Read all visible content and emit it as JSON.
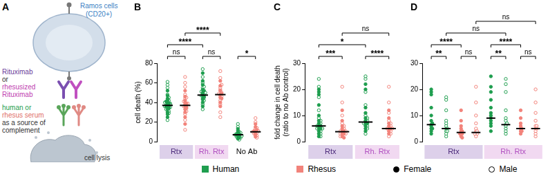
{
  "panel_a": {
    "label": "A",
    "cell": [
      "Ramos cells",
      "(CD20+)"
    ],
    "antibody_text": [
      "Rituximab",
      "or",
      "rhesusized",
      "Rituximab"
    ],
    "serum_text": [
      "human or",
      "rhesus serum",
      "as a source of",
      "complement"
    ],
    "lysis": "cell lysis"
  },
  "legend": {
    "series": [
      {
        "name": "Human",
        "color": "#1f9e4f"
      },
      {
        "name": "Rhesus",
        "color": "#f2837b"
      }
    ],
    "markers": [
      {
        "name": "Female",
        "marker": "filled"
      },
      {
        "name": "Male",
        "marker": "open"
      }
    ]
  },
  "chart_data": [
    {
      "panel": "B",
      "type": "scatter",
      "y_label": "cell death (%)",
      "ylim": [
        0,
        80
      ],
      "yticks": [
        0,
        20,
        40,
        60,
        80
      ],
      "grid": false,
      "tick_labels": "y",
      "groups": [
        {
          "label": "Rtx",
          "color": "#ddd0ea",
          "columns": [
            {
              "series": "Human",
              "median": 37,
              "female": [
                36,
                38,
                40,
                33,
                35,
                42,
                37,
                30,
                44,
                39,
                28,
                47,
                36,
                34,
                41,
                52,
                25
              ],
              "male": [
                37,
                31,
                45,
                39,
                35,
                42,
                29,
                48,
                36,
                33,
                58,
                22,
                40,
                38,
                55,
                61
              ]
            },
            {
              "series": "Rhesus",
              "median": 37,
              "female": [
                36,
                30,
                42,
                38,
                25,
                46,
                33,
                40,
                18,
                52,
                35,
                39
              ],
              "male": [
                37,
                28,
                44,
                41,
                34,
                48,
                22,
                56,
                31,
                12,
                39,
                60,
                36,
                45,
                66
              ]
            }
          ]
        },
        {
          "label": "Rh. Rtx",
          "color": "#f1d9f1",
          "columns": [
            {
              "series": "Human",
              "median": 47.5,
              "female": [
                47,
                50,
                44,
                53,
                40,
                58,
                46,
                36,
                62,
                49,
                52,
                70,
                43
              ],
              "male": [
                48,
                45,
                55,
                51,
                38,
                60,
                42,
                66,
                47,
                33,
                74,
                56,
                50
              ]
            },
            {
              "series": "Rhesus",
              "median": 48,
              "female": [
                48,
                45,
                52,
                40,
                57,
                49,
                36,
                62,
                44
              ],
              "male": [
                47,
                53,
                42,
                58,
                50,
                30,
                65,
                46,
                38,
                72,
                55,
                25,
                49
              ]
            }
          ]
        },
        {
          "label": "No Ab",
          "columns": [
            {
              "series": "Human",
              "median": 7,
              "female": [
                7,
                5,
                9,
                6,
                8,
                4,
                11,
                7,
                3,
                13
              ],
              "male": [
                8,
                6,
                10,
                5,
                7,
                15,
                4,
                9,
                18,
                6,
                2
              ]
            },
            {
              "series": "Rhesus",
              "median": 10,
              "female": [
                10,
                8,
                12,
                7,
                15,
                11,
                5,
                18
              ],
              "male": [
                9,
                13,
                6,
                11,
                20,
                8,
                14,
                4,
                24,
                10
              ]
            }
          ]
        }
      ],
      "brackets": [
        {
          "from": 0,
          "to": 1,
          "label": "ns"
        },
        {
          "from": 0,
          "to": 2,
          "label": "****"
        },
        {
          "from": 1,
          "to": 3,
          "label": "****"
        },
        {
          "from": 2,
          "to": 3,
          "label": "ns"
        },
        {
          "from": 4,
          "to": 5,
          "label": "*"
        }
      ]
    },
    {
      "panel": "C",
      "type": "scatter",
      "y_label": [
        "fold change in cell death",
        "(ratio to no Ab control)"
      ],
      "ylim": [
        0,
        30
      ],
      "yticks": [
        0,
        10,
        20,
        30
      ],
      "grid": false,
      "tick_labels": "y",
      "groups": [
        {
          "label": "Rtx",
          "color": "#ddd0ea",
          "columns": [
            {
              "series": "Human",
              "median": 6,
              "female": [
                6,
                4,
                8,
                5,
                18,
                7,
                3,
                10,
                19,
                2,
                6,
                14,
                20,
                5
              ],
              "male": [
                6,
                4,
                9,
                5,
                7,
                3,
                12,
                17,
                21,
                8,
                5,
                24,
                2
              ]
            },
            {
              "series": "Rhesus",
              "median": 3.8,
              "female": [
                4,
                3,
                5,
                2,
                6,
                3,
                8,
                12,
                4,
                1.5
              ],
              "male": [
                4,
                3,
                5,
                2,
                7,
                10,
                3,
                15,
                4,
                21,
                6
              ]
            }
          ]
        },
        {
          "label": "Rh. Rtx",
          "color": "#f1d9f1",
          "columns": [
            {
              "series": "Human",
              "median": 7.5,
              "female": [
                7,
                9,
                5,
                8,
                20,
                11,
                6,
                4,
                22,
                13,
                7
              ],
              "male": [
                8,
                6,
                10,
                7,
                19,
                5,
                14,
                24,
                9,
                3,
                25
              ]
            },
            {
              "series": "Rhesus",
              "median": 5,
              "female": [
                5,
                4,
                7,
                3,
                6,
                12,
                5,
                9
              ],
              "male": [
                5,
                4,
                6,
                3,
                8,
                15,
                2,
                11,
                21,
                5,
                7
              ]
            }
          ]
        }
      ],
      "brackets": [
        {
          "from": 0,
          "to": 1,
          "label": "***"
        },
        {
          "from": 2,
          "to": 3,
          "label": "****"
        },
        {
          "from": 0,
          "to": 2,
          "label": "*"
        },
        {
          "from": 1,
          "to": 3,
          "label": "ns"
        }
      ]
    },
    {
      "panel": "D",
      "type": "scatter",
      "ylim": [
        0,
        30
      ],
      "yticks": [
        0,
        10,
        20,
        30
      ],
      "grid": false,
      "tick_labels": "y",
      "groups": [
        {
          "label": "Rtx",
          "color": "#ddd0ea",
          "columns": [
            {
              "series": "Human",
              "median": 6.5,
              "female": [
                6.5,
                5,
                8,
                4,
                7,
                18,
                10,
                3,
                19,
                6,
                13,
                20,
                5
              ]
            },
            {
              "series": "Human",
              "median": 5,
              "male": [
                5,
                4,
                6,
                3,
                8,
                12,
                5,
                16,
                2,
                17,
                7,
                4
              ]
            },
            {
              "series": "Rhesus",
              "median": 3.5,
              "female": [
                3.5,
                3,
                4,
                2,
                5,
                3,
                6,
                8,
                12,
                4,
                1.5
              ]
            },
            {
              "series": "Rhesus",
              "median": 3.5,
              "male": [
                3.5,
                3,
                4,
                2,
                5,
                7,
                10,
                3,
                15,
                4,
                21
              ]
            }
          ]
        },
        {
          "label": "Rh. Rtx",
          "color": "#f1d9f1",
          "columns": [
            {
              "series": "Human",
              "median": 9,
              "female": [
                9,
                7,
                11,
                8,
                19,
                13,
                6,
                21,
                10,
                4,
                25,
                16
              ]
            },
            {
              "series": "Human",
              "median": 6.5,
              "male": [
                6.5,
                5,
                8,
                6,
                12,
                19,
                4,
                24,
                9,
                7,
                3,
                22
              ]
            },
            {
              "series": "Rhesus",
              "median": 5,
              "female": [
                5,
                4,
                7,
                3,
                6,
                12,
                5,
                9,
                4
              ]
            },
            {
              "series": "Rhesus",
              "median": 5,
              "male": [
                5,
                4,
                6,
                3,
                8,
                15,
                2,
                11,
                20,
                6,
                5
              ]
            }
          ]
        }
      ],
      "brackets": [
        {
          "from": 0,
          "to": 1,
          "label": "**"
        },
        {
          "from": 0,
          "to": 2,
          "label": "****"
        },
        {
          "from": 2,
          "to": 3,
          "label": "ns"
        },
        {
          "from": 4,
          "to": 5,
          "label": "**"
        },
        {
          "from": 4,
          "to": 6,
          "label": "****"
        },
        {
          "from": 6,
          "to": 7,
          "label": "ns"
        },
        {
          "from": 1,
          "to": 5,
          "label": "ns"
        },
        {
          "from": 3,
          "to": 7,
          "label": "ns"
        }
      ]
    }
  ]
}
